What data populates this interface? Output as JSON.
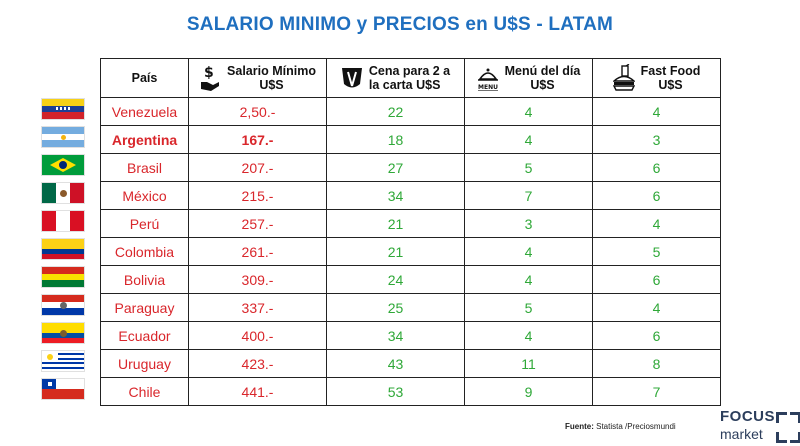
{
  "chart_data": {
    "type": "table",
    "title": "SALARIO MINIMO y PRECIOS en U$S - LATAM",
    "columns": [
      {
        "key": "pais",
        "label_lines": [
          "País"
        ],
        "icon": "none"
      },
      {
        "key": "salario",
        "label_lines": [
          "Salario Mínimo",
          "U$S"
        ],
        "icon": "dollar-hand-icon"
      },
      {
        "key": "cena",
        "label_lines": [
          "Cena para 2 a",
          "la carta U$S"
        ],
        "icon": "fork-knife-icon"
      },
      {
        "key": "menu",
        "label_lines": [
          "Menú del día",
          "U$S"
        ],
        "icon": "cloche-menu-icon"
      },
      {
        "key": "fastfood",
        "label_lines": [
          "Fast Food",
          "U$S"
        ],
        "icon": "burger-drink-icon"
      }
    ],
    "menu_icon_text": "MENU",
    "rows": [
      {
        "pais": "Venezuela",
        "salario": "2,50.-",
        "cena": "22",
        "menu": "4",
        "fastfood": "4",
        "flag": "venezuela-flag-icon",
        "highlight": false
      },
      {
        "pais": "Argentina",
        "salario": "167.-",
        "cena": "18",
        "menu": "4",
        "fastfood": "3",
        "flag": "argentina-flag-icon",
        "highlight": true
      },
      {
        "pais": "Brasil",
        "salario": "207.-",
        "cena": "27",
        "menu": "5",
        "fastfood": "6",
        "flag": "brazil-flag-icon",
        "highlight": false
      },
      {
        "pais": "México",
        "salario": "215.-",
        "cena": "34",
        "menu": "7",
        "fastfood": "6",
        "flag": "mexico-flag-icon",
        "highlight": false
      },
      {
        "pais": "Perú",
        "salario": "257.-",
        "cena": "21",
        "menu": "3",
        "fastfood": "4",
        "flag": "peru-flag-icon",
        "highlight": false
      },
      {
        "pais": "Colombia",
        "salario": "261.-",
        "cena": "21",
        "menu": "4",
        "fastfood": "5",
        "flag": "colombia-flag-icon",
        "highlight": false
      },
      {
        "pais": "Bolivia",
        "salario": "309.-",
        "cena": "24",
        "menu": "4",
        "fastfood": "6",
        "flag": "bolivia-flag-icon",
        "highlight": false
      },
      {
        "pais": "Paraguay",
        "salario": "337.-",
        "cena": "25",
        "menu": "5",
        "fastfood": "4",
        "flag": "paraguay-flag-icon",
        "highlight": false
      },
      {
        "pais": "Ecuador",
        "salario": "400.-",
        "cena": "34",
        "menu": "4",
        "fastfood": "6",
        "flag": "ecuador-flag-icon",
        "highlight": false
      },
      {
        "pais": "Uruguay",
        "salario": "423.-",
        "cena": "43",
        "menu": "11",
        "fastfood": "8",
        "flag": "uruguay-flag-icon",
        "highlight": false
      },
      {
        "pais": "Chile",
        "salario": "441.-",
        "cena": "53",
        "menu": "9",
        "fastfood": "7",
        "flag": "chile-flag-icon",
        "highlight": false
      }
    ],
    "colors": {
      "title": "#1f6fbf",
      "country_and_wage": "#d9262b",
      "prices": "#2fa838",
      "border": "#222222"
    }
  },
  "footer": {
    "source_label": "Fuente:",
    "source_text": " Statista /Preciosmundi"
  },
  "logo": {
    "line1": "FOCUS",
    "line2": "market"
  }
}
